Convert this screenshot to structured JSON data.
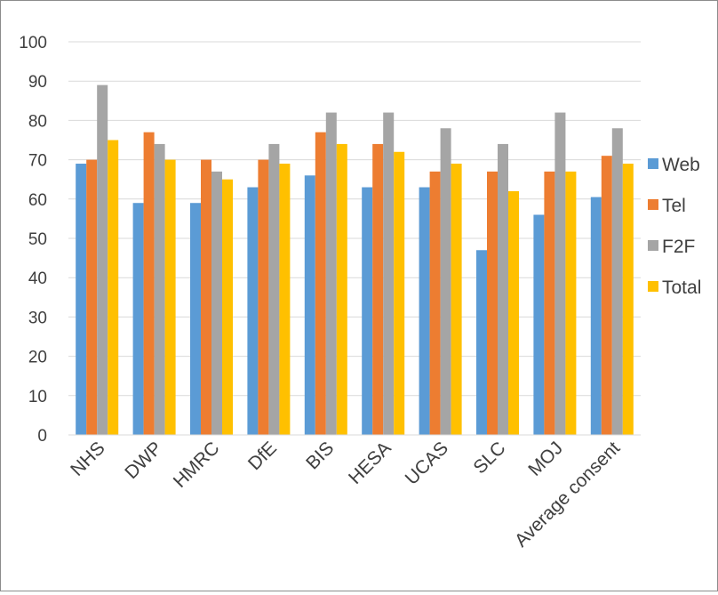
{
  "chart_data": {
    "type": "bar",
    "title": "",
    "xlabel": "",
    "ylabel": "",
    "ylim": [
      0,
      100
    ],
    "ytick_step": 10,
    "grid": "horizontal",
    "legend_position": "right",
    "categories": [
      "NHS",
      "DWP",
      "HMRC",
      "DfE",
      "BIS",
      "HESA",
      "UCAS",
      "SLC",
      "MOJ",
      "Average consent"
    ],
    "series": [
      {
        "name": "Web",
        "color": "#5b9bd5",
        "values": [
          69,
          59,
          59,
          63,
          66,
          63,
          63,
          47,
          56,
          60.5
        ]
      },
      {
        "name": "Tel",
        "color": "#ed7d31",
        "values": [
          70,
          77,
          70,
          70,
          77,
          74,
          67,
          67,
          67,
          71
        ]
      },
      {
        "name": "F2F",
        "color": "#a5a5a5",
        "values": [
          89,
          74,
          67,
          74,
          82,
          82,
          78,
          74,
          82,
          78
        ]
      },
      {
        "name": "Total",
        "color": "#ffc000",
        "values": [
          75,
          70,
          65,
          69,
          74,
          72,
          69,
          62,
          67,
          69
        ]
      }
    ]
  }
}
